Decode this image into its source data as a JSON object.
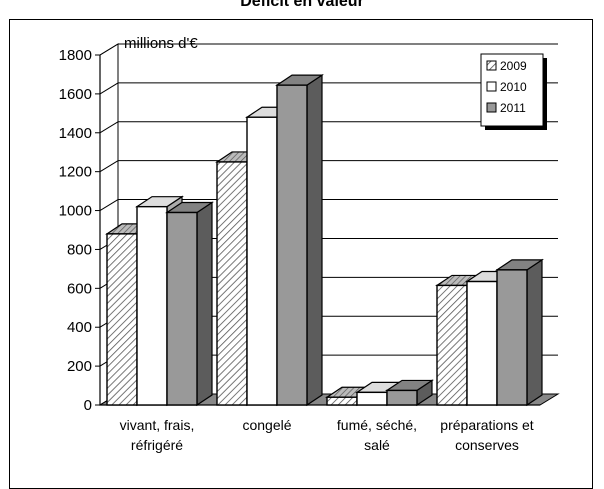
{
  "chart_data": {
    "type": "bar",
    "title": "Déficit en valeur",
    "unit_label": "millions d'€",
    "categories": [
      [
        "vivant, frais,",
        "réfrigéré"
      ],
      [
        "congelé"
      ],
      [
        "fumé, séché,",
        "salé"
      ],
      [
        "préparations et",
        "conserves"
      ]
    ],
    "series": [
      {
        "name": "2009",
        "values": [
          880,
          1250,
          40,
          615
        ],
        "color": "#ffffff",
        "pattern": "hatch"
      },
      {
        "name": "2010",
        "values": [
          1020,
          1480,
          65,
          635
        ],
        "color": "#ffffff",
        "pattern": "solid"
      },
      {
        "name": "2011",
        "values": [
          990,
          1645,
          75,
          695
        ],
        "color": "#999999",
        "pattern": "solid"
      }
    ],
    "y_ticks": [
      0,
      200,
      400,
      600,
      800,
      1000,
      1200,
      1400,
      1600,
      1800
    ],
    "ylim": [
      0,
      1800
    ],
    "grid": true,
    "legend_position": "top-right"
  }
}
